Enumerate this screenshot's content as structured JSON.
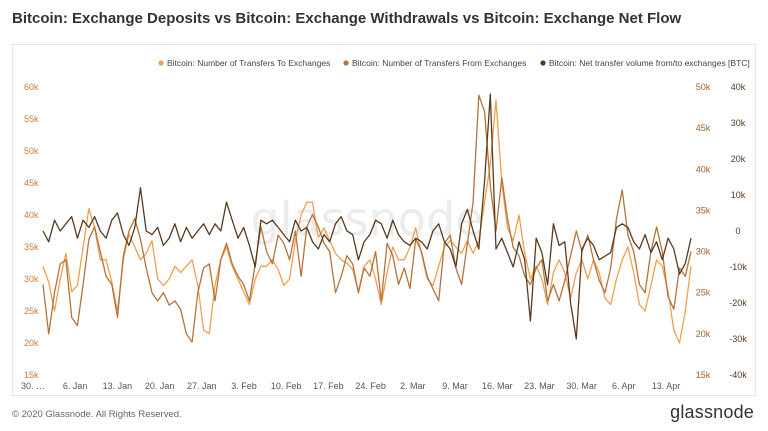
{
  "header": {
    "title": "Bitcoin: Exchange Deposits vs Bitcoin: Exchange Withdrawals vs Bitcoin: Exchange Net Flow"
  },
  "footer": {
    "copyright": "© 2020 Glassnode. All Rights Reserved.",
    "logo": "glassnode"
  },
  "watermark": "glassnode",
  "colors": {
    "deposits": "#f0a04b",
    "withdrawals": "#b5733b",
    "netflow": "#5a3a1e",
    "left_axis": "#c87f3a",
    "inner_right_axis": "#a0642c",
    "outer_right_axis": "#5a3a1e"
  },
  "chart_data": {
    "type": "line",
    "title": "Bitcoin: Exchange Deposits vs Bitcoin: Exchange Withdrawals vs Bitcoin: Exchange Net Flow",
    "legend": {
      "placement": "top-right",
      "entries": [
        "Bitcoin: Number of Transfers To Exchanges",
        "Bitcoin: Number of Transfers From Exchanges",
        "Bitcoin: Net transfer volume from/to exchanges [BTC]"
      ]
    },
    "x_ticks": [
      "30. …",
      "6. Jan",
      "13. Jan",
      "20. Jan",
      "27. Jan",
      "3. Feb",
      "10. Feb",
      "17. Feb",
      "24. Feb",
      "2. Mar",
      "9. Mar",
      "16. Mar",
      "23. Mar",
      "30. Mar",
      "6. Apr",
      "13. Apr"
    ],
    "axes": {
      "left": {
        "ylim": [
          15000,
          60000
        ],
        "ticks": [
          "15k",
          "20k",
          "25k",
          "30k",
          "35k",
          "40k",
          "45k",
          "50k",
          "55k",
          "60k"
        ],
        "series": "Bitcoin: Number of Transfers To Exchanges"
      },
      "right_inner": {
        "ylim": [
          15000,
          50000
        ],
        "ticks": [
          "15k",
          "20k",
          "25k",
          "30k",
          "35k",
          "40k",
          "45k",
          "50k"
        ],
        "series": "Bitcoin: Number of Transfers From Exchanges"
      },
      "right_outer": {
        "ylim": [
          -40000,
          40000
        ],
        "ticks": [
          "-40k",
          "-30k",
          "-20k",
          "-10k",
          "0",
          "10k",
          "20k",
          "30k",
          "40k"
        ],
        "series": "Bitcoin: Net transfer volume from/to exchanges [BTC]"
      }
    },
    "grid": false,
    "series": [
      {
        "name": "Bitcoin: Number of Transfers To Exchanges",
        "axis": "left",
        "values": [
          32000,
          29500,
          25000,
          30000,
          34000,
          28000,
          29000,
          35000,
          41000,
          38000,
          33000,
          33000,
          29500,
          25000,
          33000,
          37000,
          35000,
          33000,
          34000,
          36000,
          30000,
          29000,
          30000,
          32000,
          31000,
          32000,
          33000,
          29000,
          22000,
          21500,
          29000,
          33000,
          35000,
          32000,
          30000,
          28000,
          26000,
          30000,
          32000,
          32000,
          33000,
          31500,
          29000,
          30000,
          36000,
          40000,
          42000,
          42000,
          36500,
          38000,
          36000,
          34000,
          33000,
          32500,
          31500,
          28000,
          32000,
          33000,
          30000,
          26000,
          31000,
          35000,
          33000,
          33000,
          35000,
          38000,
          34000,
          30000,
          29000,
          32000,
          35000,
          36000,
          35000,
          34000,
          36000,
          34000,
          36000,
          42000,
          48000,
          58000,
          45000,
          38000,
          36000,
          40000,
          34000,
          30000,
          32000,
          30000,
          26000,
          31000,
          33000,
          31000,
          27000,
          31000,
          33000,
          30000,
          33000,
          31000,
          27000,
          26000,
          30000,
          33000,
          35000,
          31000,
          26000,
          25000,
          29000,
          33000,
          32000,
          28000,
          22000,
          20000,
          25000,
          32000
        ]
      },
      {
        "name": "Bitcoin: Number of Transfers From Exchanges",
        "axis": "right_inner",
        "values": [
          26000,
          20000,
          25000,
          28500,
          29000,
          22000,
          21000,
          26000,
          31500,
          33000,
          30000,
          27000,
          26000,
          22000,
          29500,
          32500,
          34000,
          31500,
          28000,
          25000,
          24000,
          25000,
          23500,
          24000,
          23000,
          20000,
          19000,
          25000,
          28000,
          28500,
          24000,
          29000,
          31000,
          28500,
          27000,
          26000,
          24000,
          28500,
          33000,
          30000,
          28500,
          32000,
          31000,
          29000,
          32500,
          27000,
          33000,
          34500,
          33000,
          31000,
          30000,
          25000,
          27000,
          29500,
          28500,
          25000,
          28000,
          27000,
          30000,
          24000,
          31000,
          29500,
          26000,
          28000,
          25500,
          31500,
          30000,
          27000,
          25500,
          24000,
          31000,
          32000,
          28000,
          26000,
          31000,
          36000,
          49000,
          47000,
          38000,
          32500,
          39000,
          34000,
          30500,
          29500,
          27000,
          26000,
          28000,
          29000,
          24000,
          26000,
          24000,
          26500,
          29500,
          32500,
          30000,
          32000,
          29000,
          26500,
          25000,
          28000,
          34000,
          37500,
          32000,
          30000,
          26000,
          25000,
          30000,
          33000,
          30000,
          24500,
          23000,
          28000,
          27000,
          30000
        ]
      },
      {
        "name": "Bitcoin: Net transfer volume from/to exchanges [BTC]",
        "axis": "right_outer",
        "values": [
          0,
          -3000,
          3000,
          0,
          2000,
          4000,
          -2000,
          3000,
          1000,
          4000,
          0,
          -2000,
          3000,
          5000,
          -1000,
          -4000,
          1000,
          12000,
          0,
          -1000,
          1000,
          -4000,
          -2000,
          2000,
          -3000,
          1000,
          -2000,
          0,
          2000,
          -1000,
          2000,
          0,
          8000,
          3000,
          -2000,
          1000,
          -4000,
          -10000,
          3000,
          2000,
          3000,
          1000,
          -1000,
          -3000,
          3000,
          0,
          1000,
          -3000,
          -5000,
          -1000,
          -3000,
          2000,
          4000,
          0,
          -1000,
          -8000,
          -3000,
          -1000,
          3000,
          2000,
          -2000,
          3000,
          -1000,
          -3000,
          -4000,
          -2000,
          -3000,
          -5000,
          0,
          2000,
          -3000,
          -5000,
          -10000,
          2000,
          6000,
          0,
          -5000,
          14000,
          38000,
          -5000,
          -2000,
          -6000,
          -10000,
          -3000,
          -8000,
          -25000,
          -2000,
          -6000,
          -15000,
          2000,
          -4000,
          -3000,
          -20000,
          -30000,
          -5000,
          -2000,
          -4000,
          -8000,
          -7000,
          -6000,
          1000,
          2000,
          1000,
          -3000,
          -5000,
          -1000,
          -6000,
          -3000,
          -8000,
          -2000,
          -5000,
          -12000,
          -9000,
          -2000
        ]
      }
    ]
  }
}
